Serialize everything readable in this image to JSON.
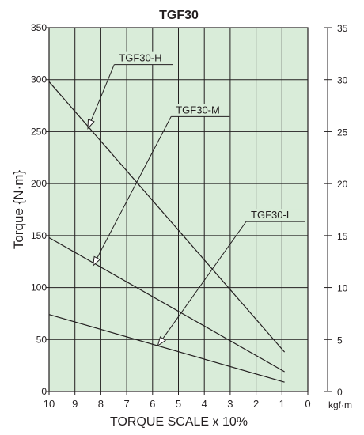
{
  "chart_data": {
    "type": "line",
    "title": "TGF30",
    "xlabel": "TORQUE SCALE x 10%",
    "ylabel": "Torque {N·m}",
    "y2label": "kgf·m",
    "xlim": [
      10,
      0
    ],
    "ylim": [
      0,
      350
    ],
    "y2lim": [
      0,
      35
    ],
    "x_ticks": [
      "10",
      "9",
      "8",
      "7",
      "6",
      "5",
      "4",
      "3",
      "2",
      "1",
      "0"
    ],
    "y_ticks": [
      "0",
      "50",
      "100",
      "150",
      "200",
      "250",
      "300",
      "350"
    ],
    "y2_ticks": [
      "0",
      "5",
      "10",
      "15",
      "20",
      "25",
      "30",
      "35"
    ],
    "grid": true,
    "background_color": "#d9ecd9",
    "line_color": "#231f20",
    "series": [
      {
        "name": "TGF30-H",
        "x": [
          10,
          0.9
        ],
        "y": [
          298,
          38
        ]
      },
      {
        "name": "TGF30-M",
        "x": [
          10,
          0.9
        ],
        "y": [
          148,
          19
        ]
      },
      {
        "name": "TGF30-L",
        "x": [
          10,
          0.9
        ],
        "y": [
          74,
          9
        ]
      }
    ],
    "annotations": [
      {
        "text": "TGF30-H",
        "label_x": 7.3,
        "label_y": 316,
        "point_x": 8.5,
        "point_y": 253,
        "series": "TGF30-H"
      },
      {
        "text": "TGF30-M",
        "label_x": 5.1,
        "label_y": 266,
        "point_x": 8.3,
        "point_y": 121,
        "series": "TGF30-M"
      },
      {
        "text": "TGF30-L",
        "label_x": 2.2,
        "label_y": 165,
        "point_x": 5.8,
        "point_y": 44,
        "series": "TGF30-L"
      }
    ]
  }
}
